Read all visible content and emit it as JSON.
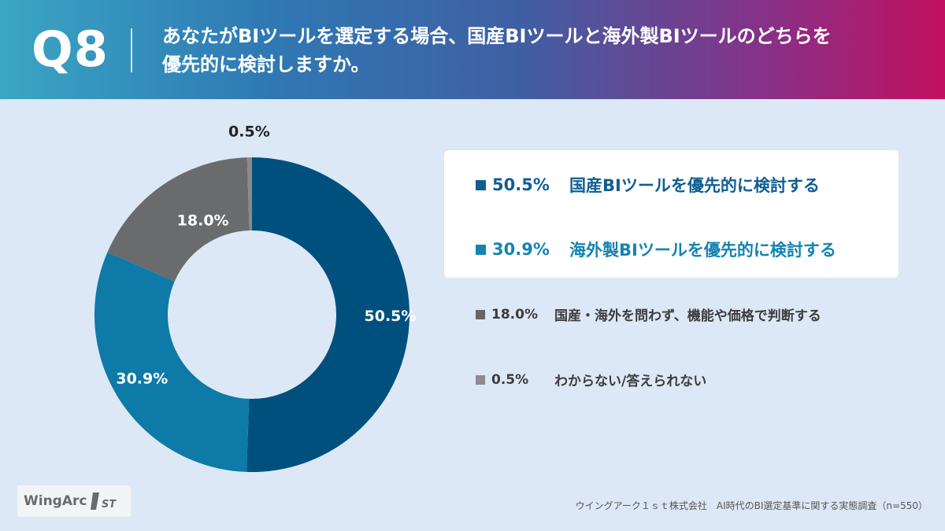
{
  "header": {
    "q_number": "Q8",
    "question_line1": "あなたがBIツールを選定する場合、国産BIツールと海外製BIツールのどちらを",
    "question_line2": "優先的に検討しますか。"
  },
  "chart_data": {
    "type": "pie",
    "donut": true,
    "unit": "%",
    "series": [
      {
        "name": "国産BIツールを優先的に検討する",
        "value": 50.5,
        "label": "50.5%",
        "color": "#00507e"
      },
      {
        "name": "海外製BIツールを優先的に検討する",
        "value": 30.9,
        "label": "30.9%",
        "color": "#0d7aa8"
      },
      {
        "name": "国産・海外を問わず、機能や価格で判断する",
        "value": 18.0,
        "label": "18.0%",
        "color": "#696b6d"
      },
      {
        "name": "わからない/答えられない",
        "value": 0.5,
        "label": "0.5%",
        "color": "#8a8a8a"
      }
    ],
    "legend_position": "right",
    "highlighted": [
      0,
      1
    ]
  },
  "legend": {
    "items": [
      {
        "pct": "50.5%",
        "text": "国産BIツールを優先的に検討する",
        "color": "#0f5e92"
      },
      {
        "pct": "30.9%",
        "text": "海外製BIツールを優先的に検討する",
        "color": "#1483b3"
      },
      {
        "pct": "18.0%",
        "text": "国産・海外を問わず、機能や価格で判断する",
        "color": "#666666"
      },
      {
        "pct": "0.5%",
        "text": "わからない/答えられない",
        "color": "#8c8c8c"
      }
    ]
  },
  "footer": {
    "logo_text": "WingArc",
    "logo_mark": "1ST",
    "source": "ウイングアーク１ｓｔ株式会社　AI時代のBI選定基準に関する実態調査（n=550）"
  }
}
